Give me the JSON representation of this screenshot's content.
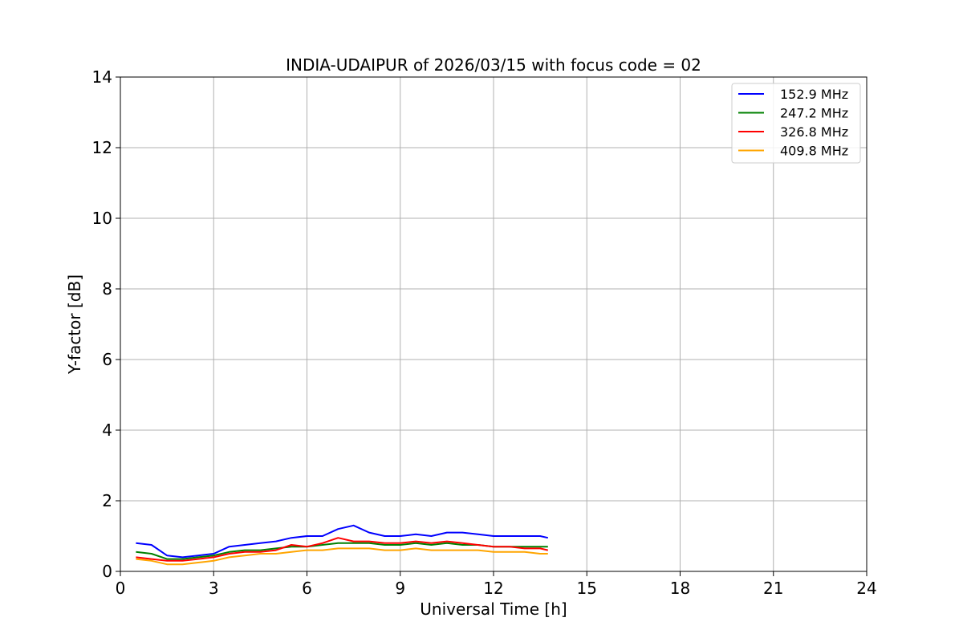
{
  "chart_data": {
    "type": "line",
    "title": "INDIA-UDAIPUR of 2026/03/15 with focus code = 02",
    "xlabel": "Universal Time [h]",
    "ylabel": "Y-factor [dB]",
    "xlim": [
      0,
      24
    ],
    "ylim": [
      0,
      14
    ],
    "xticks": [
      0,
      3,
      6,
      9,
      12,
      15,
      18,
      21,
      24
    ],
    "yticks": [
      0,
      2,
      4,
      6,
      8,
      10,
      12,
      14
    ],
    "grid": true,
    "legend_position": "top-right",
    "x": [
      0.5,
      1.0,
      1.5,
      2.0,
      2.5,
      3.0,
      3.5,
      4.0,
      4.5,
      5.0,
      5.5,
      6.0,
      6.5,
      7.0,
      7.5,
      8.0,
      8.5,
      9.0,
      9.5,
      10.0,
      10.5,
      11.0,
      11.5,
      12.0,
      12.5,
      13.0,
      13.5,
      13.75
    ],
    "series": [
      {
        "name": "152.9 MHz",
        "color": "#0000ff",
        "values": [
          0.8,
          0.75,
          0.45,
          0.4,
          0.45,
          0.5,
          0.7,
          0.75,
          0.8,
          0.85,
          0.95,
          1.0,
          1.0,
          1.2,
          1.3,
          1.1,
          1.0,
          1.0,
          1.05,
          1.0,
          1.1,
          1.1,
          1.05,
          1.0,
          1.0,
          1.0,
          1.0,
          0.95
        ]
      },
      {
        "name": "247.2 MHz",
        "color": "#008000",
        "values": [
          0.55,
          0.5,
          0.35,
          0.35,
          0.4,
          0.45,
          0.55,
          0.6,
          0.6,
          0.65,
          0.7,
          0.7,
          0.75,
          0.8,
          0.8,
          0.8,
          0.75,
          0.75,
          0.8,
          0.75,
          0.8,
          0.75,
          0.75,
          0.7,
          0.7,
          0.7,
          0.7,
          0.7
        ]
      },
      {
        "name": "326.8 MHz",
        "color": "#ff0000",
        "values": [
          0.4,
          0.35,
          0.3,
          0.3,
          0.35,
          0.4,
          0.5,
          0.55,
          0.55,
          0.6,
          0.75,
          0.7,
          0.8,
          0.95,
          0.85,
          0.85,
          0.8,
          0.8,
          0.85,
          0.8,
          0.85,
          0.8,
          0.75,
          0.7,
          0.7,
          0.65,
          0.65,
          0.6
        ]
      },
      {
        "name": "409.8 MHz",
        "color": "#ffa500",
        "values": [
          0.35,
          0.3,
          0.2,
          0.2,
          0.25,
          0.3,
          0.4,
          0.45,
          0.5,
          0.5,
          0.55,
          0.6,
          0.6,
          0.65,
          0.65,
          0.65,
          0.6,
          0.6,
          0.65,
          0.6,
          0.6,
          0.6,
          0.6,
          0.55,
          0.55,
          0.55,
          0.5,
          0.5
        ]
      }
    ]
  }
}
